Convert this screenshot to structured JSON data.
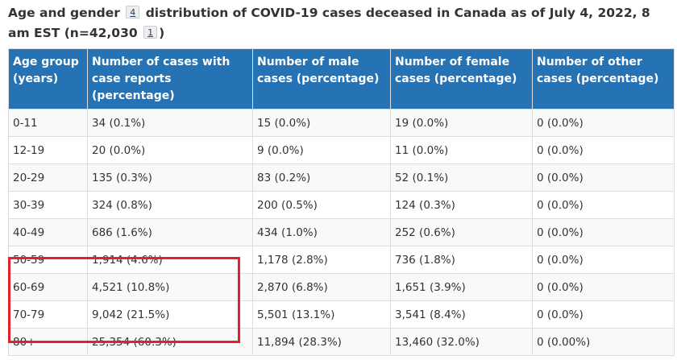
{
  "caption": {
    "part1": "Age and gender",
    "footnote_a": "4",
    "part2": "distribution of COVID-19 cases deceased in Canada as of July 4, 2022, 8 am EST (n=42,030",
    "footnote_b": "1",
    "part3": ")"
  },
  "table": {
    "headers": [
      "Age group (years)",
      "Number of cases with case reports (percentage)",
      "Number of male cases (percentage)",
      "Number of female cases (percentage)",
      "Number of other cases (percentage)"
    ],
    "rows": [
      [
        "0-11",
        "34 (0.1%)",
        "15 (0.0%)",
        "19 (0.0%)",
        "0 (0.0%)"
      ],
      [
        "12-19",
        "20 (0.0%)",
        "9 (0.0%)",
        "11 (0.0%)",
        "0 (0.0%)"
      ],
      [
        "20-29",
        "135 (0.3%)",
        "83 (0.2%)",
        "52 (0.1%)",
        "0 (0.0%)"
      ],
      [
        "30-39",
        "324 (0.8%)",
        "200 (0.5%)",
        "124 (0.3%)",
        "0 (0.0%)"
      ],
      [
        "40-49",
        "686 (1.6%)",
        "434 (1.0%)",
        "252 (0.6%)",
        "0 (0.0%)"
      ],
      [
        "50-59",
        "1,914 (4.6%)",
        "1,178 (2.8%)",
        "736 (1.8%)",
        "0 (0.0%)"
      ],
      [
        "60-69",
        "4,521 (10.8%)",
        "2,870 (6.8%)",
        "1,651 (3.9%)",
        "0 (0.0%)"
      ],
      [
        "70-79",
        "9,042 (21.5%)",
        "5,501 (13.1%)",
        "3,541 (8.4%)",
        "0 (0.0%)"
      ],
      [
        "80+",
        "25,354 (60.3%)",
        "11,894 (28.3%)",
        "13,460 (32.0%)",
        "0 (0.00%)"
      ]
    ]
  },
  "colors": {
    "header_bg": "#2572b4",
    "header_text": "#ffffff",
    "highlight": "#e3202e",
    "stripe": "#f9f9f9"
  }
}
